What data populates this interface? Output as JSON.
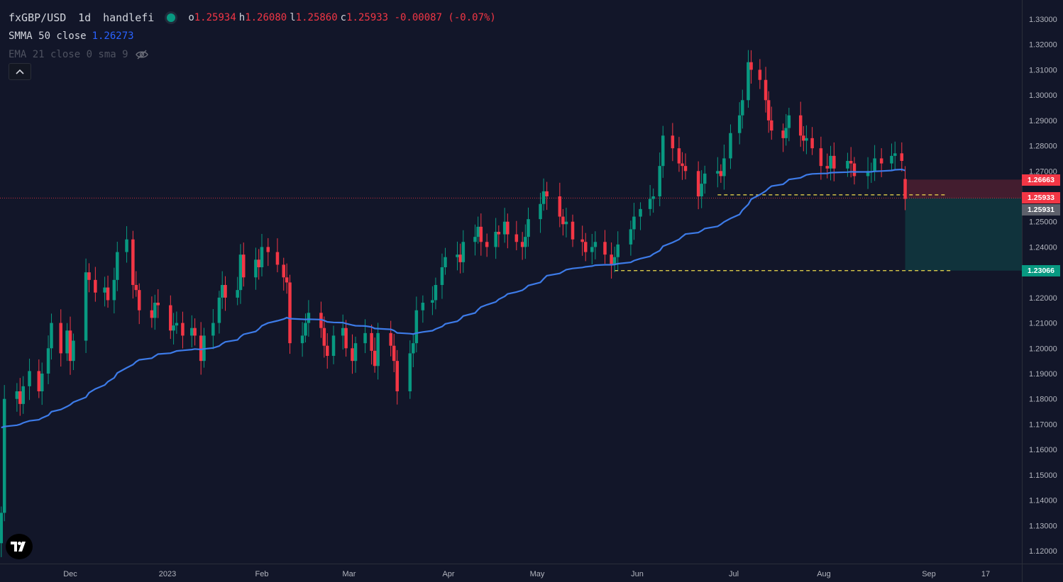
{
  "legend": {
    "symbol": "fxGBP/USD",
    "interval": "1d",
    "author": "handlefi",
    "o_label": "o",
    "o": "1.25934",
    "h_label": "h",
    "h": "1.26080",
    "l_label": "l",
    "l": "1.25860",
    "c_label": "c",
    "c": "1.25933",
    "change": "-0.00087 (-0.07%)",
    "smma_label": "SMMA 50 close",
    "smma_value": "1.26273",
    "ema_label": "EMA 21 close 0 sma 9"
  },
  "price_tags": {
    "stop": "1.26663",
    "last": "1.25933",
    "entry": "1.25931",
    "target": "1.23066"
  },
  "colors": {
    "background": "#121629",
    "up": "#089981",
    "down": "#f23645",
    "ma": "#3d7be8",
    "dashed": "#f5e04d"
  },
  "chart_data": {
    "type": "candlestick",
    "y_axis_ticks": [
      1.33,
      1.32,
      1.31,
      1.3,
      1.29,
      1.28,
      1.27,
      1.26,
      1.25,
      1.24,
      1.23,
      1.22,
      1.21,
      1.2,
      1.19,
      1.18,
      1.17,
      1.16,
      1.15,
      1.14,
      1.13,
      1.12
    ],
    "ylim": [
      1.1155,
      1.3345
    ],
    "x_axis_labels": [
      "Dec",
      "2023",
      "Feb",
      "Mar",
      "Apr",
      "May",
      "Jun",
      "Jul",
      "Aug",
      "Sep",
      "17"
    ],
    "x_axis_label_dates": [
      "2022-12-01",
      "2023-01-01",
      "2023-02-01",
      "2023-03-01",
      "2023-04-01",
      "2023-05-01",
      "2023-06-01",
      "2023-07-01",
      "2023-08-01",
      "2023-09-01",
      "2023-09-17"
    ],
    "date_range": [
      "2022-11-09",
      "2023-08-25"
    ],
    "closes": [
      1.135,
      1.18,
      1.183,
      1.178,
      1.185,
      1.191,
      1.183,
      1.19,
      1.2,
      1.21,
      1.198,
      1.207,
      1.195,
      1.203,
      1.23,
      1.227,
      1.222,
      1.224,
      1.219,
      1.227,
      1.238,
      1.243,
      1.225,
      1.223,
      1.215,
      1.212,
      1.218,
      1.217,
      1.207,
      1.209,
      1.21,
      1.205,
      1.208,
      1.205,
      1.195,
      1.205,
      1.21,
      1.22,
      1.225,
      1.22,
      1.223,
      1.237,
      1.228,
      1.235,
      1.232,
      1.24,
      1.238,
      1.233,
      1.228,
      1.226,
      1.202,
      1.205,
      1.21,
      1.214,
      1.208,
      1.201,
      1.197,
      1.205,
      1.208,
      1.2,
      1.195,
      1.202,
      1.206,
      1.199,
      1.193,
      1.206,
      1.201,
      1.195,
      1.183,
      1.198,
      1.202,
      1.215,
      1.218,
      1.219,
      1.225,
      1.232,
      1.236,
      1.237,
      1.234,
      1.242,
      1.244,
      1.248,
      1.242,
      1.24,
      1.246,
      1.245,
      1.25,
      1.245,
      1.242,
      1.24,
      1.244,
      1.251,
      1.257,
      1.262,
      1.26,
      1.252,
      1.249,
      1.25,
      1.243,
      1.242,
      1.238,
      1.24,
      1.242,
      1.237,
      1.233,
      1.236,
      1.241,
      1.247,
      1.252,
      1.255,
      1.259,
      1.26,
      1.272,
      1.284,
      1.279,
      1.273,
      1.272,
      1.27,
      1.26,
      1.265,
      1.269,
      1.27,
      1.268,
      1.275,
      1.285,
      1.292,
      1.298,
      1.313,
      1.31,
      1.306,
      1.298,
      1.29,
      1.286,
      1.283,
      1.287,
      1.292,
      1.284,
      1.282,
      1.283,
      1.279,
      1.272,
      1.271,
      1.276,
      1.271,
      1.274,
      1.273,
      1.268,
      1.27,
      1.27,
      1.275,
      1.273,
      1.276,
      1.277,
      1.274,
      1.259
    ]
  }
}
